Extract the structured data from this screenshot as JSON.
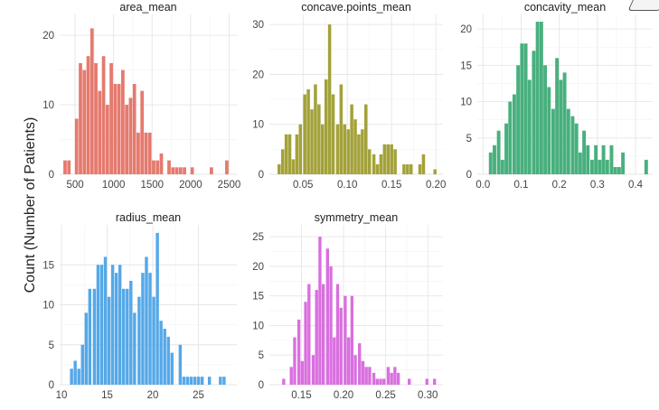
{
  "figure": {
    "ylabel": "Count (Number of Patients)"
  },
  "chart_data": [
    {
      "type": "bar",
      "title": "area_mean",
      "color": "#E57A6E",
      "xlim": [
        300,
        2600
      ],
      "ylim": [
        0,
        23
      ],
      "xticks": [
        500,
        1000,
        1500,
        2000,
        2500
      ],
      "yticks": [
        0,
        10,
        20
      ],
      "x": [
        370,
        420,
        520,
        570,
        620,
        670,
        720,
        770,
        820,
        870,
        920,
        970,
        1020,
        1070,
        1120,
        1170,
        1220,
        1270,
        1320,
        1370,
        1420,
        1470,
        1520,
        1570,
        1620,
        1720,
        1770,
        1820,
        1870,
        1920,
        2020,
        2270,
        2470
      ],
      "values": [
        2,
        2,
        8,
        16,
        15,
        17,
        21,
        16,
        12,
        17,
        10,
        16,
        13,
        13,
        15,
        10,
        11,
        13,
        6,
        12,
        6,
        6,
        2,
        2,
        3,
        2,
        1,
        1,
        1,
        1,
        1,
        1,
        2
      ],
      "binwidth": 44
    },
    {
      "type": "bar",
      "title": "concave.points_mean",
      "color": "#A3A23A",
      "xlim": [
        0.012,
        0.208
      ],
      "ylim": [
        0,
        32
      ],
      "xticks": [
        0.05,
        0.1,
        0.15,
        0.2
      ],
      "xtick_labels": [
        "0.05",
        "0.10",
        "0.15",
        "0.20"
      ],
      "yticks": [
        0,
        10,
        20,
        30
      ],
      "x": [
        0.023,
        0.027,
        0.031,
        0.035,
        0.039,
        0.043,
        0.047,
        0.052,
        0.056,
        0.06,
        0.064,
        0.068,
        0.072,
        0.076,
        0.08,
        0.084,
        0.089,
        0.093,
        0.097,
        0.101,
        0.105,
        0.109,
        0.113,
        0.117,
        0.121,
        0.125,
        0.13,
        0.134,
        0.138,
        0.142,
        0.146,
        0.15,
        0.154,
        0.164,
        0.168,
        0.172,
        0.182,
        0.186,
        0.199
      ],
      "values": [
        2,
        5,
        8,
        8,
        3,
        8,
        10,
        16,
        17,
        13,
        18,
        14,
        10,
        19,
        30,
        16,
        10,
        18,
        10,
        9,
        14,
        11,
        8,
        9,
        14,
        5,
        4,
        2,
        4,
        6,
        6,
        6,
        5,
        2,
        2,
        2,
        2,
        4,
        1
      ],
      "binwidth": 0.0036
    },
    {
      "type": "bar",
      "title": "concavity_mean",
      "color": "#48B07E",
      "xlim": [
        -0.015,
        0.445
      ],
      "ylim": [
        0,
        22
      ],
      "xticks": [
        0.0,
        0.1,
        0.2,
        0.3,
        0.4
      ],
      "xtick_labels": [
        "0.0",
        "0.1",
        "0.2",
        "0.3",
        "0.4"
      ],
      "yticks": [
        0,
        5,
        10,
        15,
        20
      ],
      "x": [
        0.02,
        0.03,
        0.041,
        0.051,
        0.061,
        0.071,
        0.082,
        0.092,
        0.102,
        0.112,
        0.122,
        0.133,
        0.143,
        0.153,
        0.163,
        0.173,
        0.184,
        0.194,
        0.204,
        0.214,
        0.224,
        0.235,
        0.245,
        0.255,
        0.265,
        0.275,
        0.286,
        0.296,
        0.306,
        0.316,
        0.326,
        0.337,
        0.347,
        0.357,
        0.367,
        0.428
      ],
      "values": [
        3,
        4,
        6,
        2,
        7,
        10,
        11,
        15,
        18,
        18,
        13,
        17,
        21,
        21,
        15,
        12,
        9,
        16,
        13,
        14,
        9,
        8,
        7,
        3,
        6,
        4,
        2,
        4,
        2,
        4,
        2,
        4,
        1,
        1,
        3,
        2
      ],
      "binwidth": 0.0093
    },
    {
      "type": "bar",
      "title": "radius_mean",
      "color": "#55A8E8",
      "xlim": [
        9.8,
        29.2
      ],
      "ylim": [
        0,
        20
      ],
      "xticks": [
        10,
        15,
        20,
        25
      ],
      "yticks": [
        0,
        5,
        10,
        15
      ],
      "x": [
        11.1,
        11.5,
        11.9,
        12.3,
        12.7,
        13.1,
        13.6,
        14.0,
        14.4,
        14.8,
        15.2,
        15.6,
        16.0,
        16.4,
        16.8,
        17.2,
        17.6,
        18.0,
        18.5,
        18.9,
        19.3,
        19.7,
        20.1,
        20.5,
        20.9,
        21.3,
        21.7,
        22.1,
        23.0,
        23.4,
        23.8,
        24.2,
        24.6,
        25.0,
        25.4,
        26.2,
        27.4,
        27.8
      ],
      "values": [
        2,
        3,
        2,
        5,
        9,
        12,
        12,
        15,
        15,
        16,
        11,
        15,
        14,
        15,
        12,
        12,
        13,
        9,
        11,
        14,
        16,
        14,
        11,
        19,
        8,
        7,
        6,
        4,
        5,
        1,
        1,
        1,
        1,
        1,
        1,
        1,
        1,
        1
      ],
      "binwidth": 0.34
    },
    {
      "type": "bar",
      "title": "symmetry_mean",
      "color": "#D96FDF",
      "xlim": [
        0.112,
        0.318
      ],
      "ylim": [
        0,
        27
      ],
      "xticks": [
        0.15,
        0.2,
        0.25,
        0.3
      ],
      "xtick_labels": [
        "0.15",
        "0.20",
        "0.25",
        "0.30"
      ],
      "yticks": [
        0,
        5,
        10,
        15,
        20,
        25
      ],
      "x": [
        0.129,
        0.138,
        0.142,
        0.147,
        0.151,
        0.155,
        0.159,
        0.164,
        0.168,
        0.172,
        0.176,
        0.181,
        0.185,
        0.189,
        0.193,
        0.197,
        0.202,
        0.206,
        0.21,
        0.214,
        0.219,
        0.223,
        0.227,
        0.231,
        0.236,
        0.24,
        0.244,
        0.248,
        0.253,
        0.257,
        0.261,
        0.265,
        0.278,
        0.299,
        0.308
      ],
      "values": [
        1,
        3,
        8,
        11,
        4,
        14,
        17,
        5,
        16,
        25,
        17,
        23,
        20,
        8,
        17,
        13,
        15,
        8,
        15,
        5,
        7,
        4,
        3,
        3,
        2,
        1,
        1,
        1,
        3,
        2,
        3,
        2,
        1,
        1,
        1
      ],
      "binwidth": 0.0036
    }
  ]
}
